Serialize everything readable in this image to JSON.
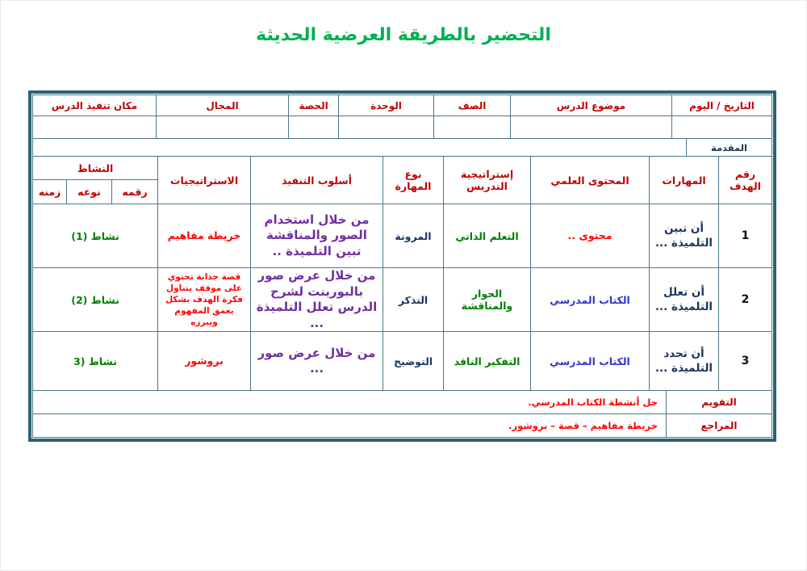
{
  "page": {
    "title": "التحضير بالطريقة العرضية الحديثة"
  },
  "colors": {
    "title_green": "#00B050",
    "header_red": "#C00000",
    "content_red": "#FF0000",
    "navy": "#17365D",
    "green": "#008000",
    "blue": "#3333CC",
    "purple": "#7030A0",
    "border_outer": "#2A6474",
    "border_inner": "#4B7886"
  },
  "info_header": {
    "date_day": "التاريخ / اليوم",
    "lesson_topic": "موضوع الدرس",
    "class": "الصف",
    "unit": "الوحدة",
    "period": "الحصة",
    "field": "المجال",
    "lesson_place": "مكان تنفيذ الدرس"
  },
  "intro": {
    "label": "المقدمة",
    "value": ""
  },
  "plan_header": {
    "goal_no": "رقم الهدف",
    "skills": "المهارات",
    "scientific_content": "المحتوى العلمي",
    "teaching_strategy": "إستراتيجية التدريس",
    "skill_type": "نوع المهارة",
    "execution_method": "أسلوب التنفيذ",
    "strategies": "الاستراتيجيات",
    "activity": {
      "label": "النشاط",
      "number": "رقمه",
      "type": "نوعه",
      "time": "زمنه"
    }
  },
  "rows": [
    {
      "goal_no": "1",
      "skills": "أن تبين التلميذة ...",
      "scientific_content": "محتوى ..",
      "teaching_strategy": "التعلم الذاتي",
      "skill_type": "المرونة",
      "execution_method": "من خلال استخدام الصور والمناقشة تبين التلميذة ..",
      "strategies": "خريطة مفاهيم",
      "activity": "نشاط (1)"
    },
    {
      "goal_no": "2",
      "skills": "أن تعلل التلميذة ...",
      "scientific_content": "الكتاب المدرسي",
      "teaching_strategy": "الحوار والمناقشة",
      "skill_type": "التذكر",
      "execution_method": "من خلال عرض صور بالبورينت لشرح الدرس تعلل التلميذة ...",
      "strategies": "قصة جذابة تحتوي على موقف يتناول فكرة الهدف بشكل يعمق المفهوم ويبرزه",
      "activity": "نشاط (2)"
    },
    {
      "goal_no": "3",
      "skills": "أن تحدد التلميذة ...",
      "scientific_content": "الكتاب المدرسي",
      "teaching_strategy": "التفكير الناقد",
      "skill_type": "التوضيح",
      "execution_method": "من خلال عرض صور ...",
      "strategies": "بروشور",
      "activity": "نشاط (3"
    }
  ],
  "footer": {
    "evaluation_label": "التقويم",
    "evaluation_value": "حل أنشطة الكتاب المدرسي.",
    "references_label": "المراجع",
    "references_value": "خريطة مفاهيم – قصة – بروشور."
  }
}
